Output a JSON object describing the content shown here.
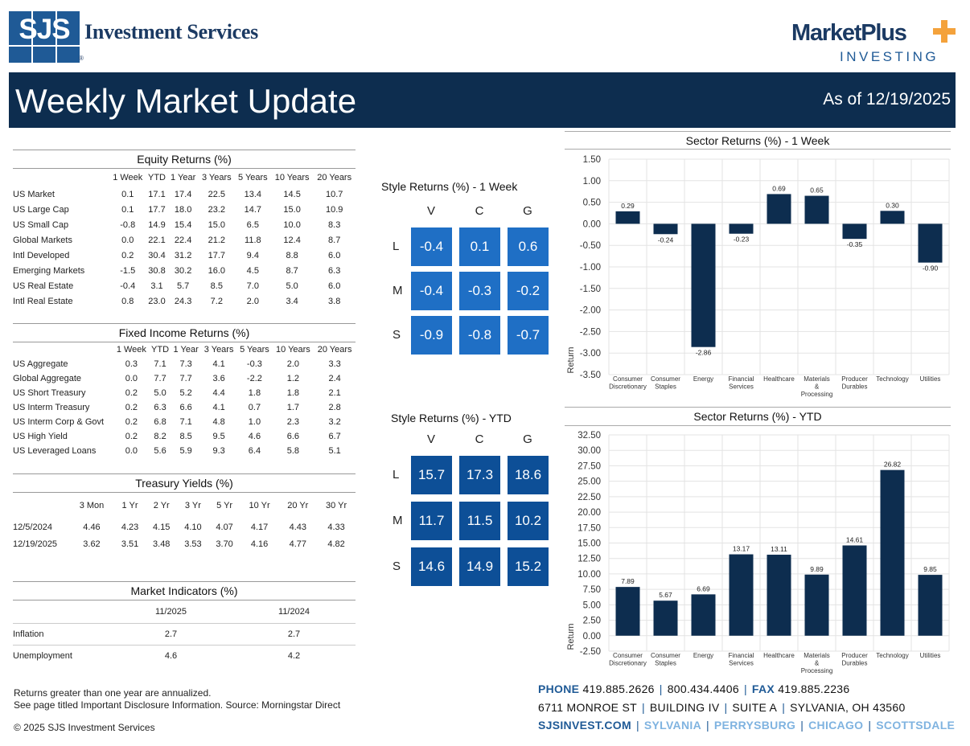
{
  "header": {
    "logo_letters": "SJS",
    "firm_name": "Investment Services",
    "reg_mark": "®",
    "partner_name": "MarketPlus",
    "partner_sub": "INVESTING",
    "title": "Weekly Market Update",
    "as_of": "As of 12/19/2025"
  },
  "equity": {
    "title": "Equity Returns (%)",
    "columns": [
      "1 Week",
      "YTD",
      "1 Year",
      "3 Years",
      "5 Years",
      "10 Years",
      "20 Years"
    ],
    "rows": [
      {
        "label": "US Market",
        "values": [
          "0.1",
          "17.1",
          "17.4",
          "22.5",
          "13.4",
          "14.5",
          "10.7"
        ]
      },
      {
        "label": "US Large Cap",
        "values": [
          "0.1",
          "17.7",
          "18.0",
          "23.2",
          "14.7",
          "15.0",
          "10.9"
        ]
      },
      {
        "label": "US Small Cap",
        "values": [
          "-0.8",
          "14.9",
          "15.4",
          "15.0",
          "6.5",
          "10.0",
          "8.3"
        ]
      },
      {
        "label": "Global Markets",
        "values": [
          "0.0",
          "22.1",
          "22.4",
          "21.2",
          "11.8",
          "12.4",
          "8.7"
        ]
      },
      {
        "label": "Intl Developed",
        "values": [
          "0.2",
          "30.4",
          "31.2",
          "17.7",
          "9.4",
          "8.8",
          "6.0"
        ]
      },
      {
        "label": "Emerging Markets",
        "values": [
          "-1.5",
          "30.8",
          "30.2",
          "16.0",
          "4.5",
          "8.7",
          "6.3"
        ]
      },
      {
        "label": "US Real Estate",
        "values": [
          "-0.4",
          "3.1",
          "5.7",
          "8.5",
          "7.0",
          "5.0",
          "6.0"
        ]
      },
      {
        "label": "Intl Real Estate",
        "values": [
          "0.8",
          "23.0",
          "24.3",
          "7.2",
          "2.0",
          "3.4",
          "3.8"
        ]
      }
    ]
  },
  "fixed": {
    "title": "Fixed Income Returns (%)",
    "columns": [
      "1 Week",
      "YTD",
      "1 Year",
      "3 Years",
      "5 Years",
      "10 Years",
      "20 Years"
    ],
    "rows": [
      {
        "label": "US Aggregate",
        "values": [
          "0.3",
          "7.1",
          "7.3",
          "4.1",
          "-0.3",
          "2.0",
          "3.3"
        ]
      },
      {
        "label": "Global Aggregate",
        "values": [
          "0.0",
          "7.7",
          "7.7",
          "3.6",
          "-2.2",
          "1.2",
          "2.4"
        ]
      },
      {
        "label": "US Short Treasury",
        "values": [
          "0.2",
          "5.0",
          "5.2",
          "4.4",
          "1.8",
          "1.8",
          "2.1"
        ]
      },
      {
        "label": "US Interm Treasury",
        "values": [
          "0.2",
          "6.3",
          "6.6",
          "4.1",
          "0.7",
          "1.7",
          "2.8"
        ]
      },
      {
        "label": "US Interm Corp & Govt",
        "values": [
          "0.2",
          "6.8",
          "7.1",
          "4.8",
          "1.0",
          "2.3",
          "3.2"
        ]
      },
      {
        "label": "US High Yield",
        "values": [
          "0.2",
          "8.2",
          "8.5",
          "9.5",
          "4.6",
          "6.6",
          "6.7"
        ]
      },
      {
        "label": "US Leveraged Loans",
        "values": [
          "0.0",
          "5.6",
          "5.9",
          "9.3",
          "6.4",
          "5.8",
          "5.1"
        ]
      }
    ]
  },
  "treasury": {
    "title": "Treasury Yields (%)",
    "columns": [
      "3 Mon",
      "1 Yr",
      "2 Yr",
      "3 Yr",
      "5 Yr",
      "10 Yr",
      "20 Yr",
      "30 Yr"
    ],
    "rows": [
      {
        "label": "12/5/2024",
        "values": [
          "4.46",
          "4.23",
          "4.15",
          "4.10",
          "4.07",
          "4.17",
          "4.43",
          "4.33"
        ]
      },
      {
        "label": "12/19/2025",
        "values": [
          "3.62",
          "3.51",
          "3.48",
          "3.53",
          "3.70",
          "4.16",
          "4.77",
          "4.82"
        ]
      }
    ]
  },
  "indicators": {
    "title": "Market Indicators (%)",
    "columns": [
      "11/2025",
      "11/2024"
    ],
    "rows": [
      {
        "label": "Inflation",
        "values": [
          "2.7",
          "2.7"
        ]
      },
      {
        "label": "Unemployment",
        "values": [
          "4.6",
          "4.2"
        ]
      }
    ]
  },
  "style_week": {
    "title": "Style Returns (%)  - 1 Week",
    "cols": [
      "V",
      "C",
      "G"
    ],
    "rows": [
      "L",
      "M",
      "S"
    ],
    "values": [
      [
        "-0.4",
        "0.1",
        "0.6"
      ],
      [
        "-0.4",
        "-0.3",
        "-0.2"
      ],
      [
        "-0.9",
        "-0.8",
        "-0.7"
      ]
    ],
    "color": "#1f6fc5"
  },
  "style_ytd": {
    "title": "Style Returns (%)  - YTD",
    "cols": [
      "V",
      "C",
      "G"
    ],
    "rows": [
      "L",
      "M",
      "S"
    ],
    "values": [
      [
        "15.7",
        "17.3",
        "18.6"
      ],
      [
        "11.7",
        "11.5",
        "10.2"
      ],
      [
        "14.6",
        "14.9",
        "15.2"
      ]
    ],
    "color": "#0d4f97"
  },
  "chart_data": [
    {
      "type": "bar",
      "title": "Sector Returns (%)  - 1 Week",
      "ylabel": "Return",
      "ylim": [
        -3.5,
        1.5
      ],
      "yticks": [
        "1.50",
        "1.00",
        "0.50",
        "0.00",
        "-0.50",
        "-1.00",
        "-1.50",
        "-2.00",
        "-2.50",
        "-3.00",
        "-3.50"
      ],
      "categories": [
        "Consumer\nDiscretionary",
        "Consumer\nStaples",
        "Energy",
        "Financial\nServices",
        "Healthcare",
        "Materials\n&\nProcessing",
        "Producer\nDurables",
        "Technology",
        "Utilities"
      ],
      "values": [
        0.29,
        -0.24,
        -2.86,
        -0.23,
        0.69,
        0.65,
        -0.35,
        0.3,
        -0.9
      ],
      "labels": [
        "0.29",
        "-0.24",
        "-2.86",
        "-0.23",
        "0.69",
        "0.65",
        "-0.35",
        "0.30",
        "-0.90"
      ],
      "bar_color": "#0d2d4f",
      "grid": true
    },
    {
      "type": "bar",
      "title": "Sector Returns (%)  - YTD",
      "ylabel": "Return",
      "ylim": [
        -2.5,
        32.5
      ],
      "yticks": [
        "32.50",
        "30.00",
        "27.50",
        "25.00",
        "22.50",
        "20.00",
        "17.50",
        "15.00",
        "12.50",
        "10.00",
        "7.50",
        "5.00",
        "2.50",
        "0.00",
        "-2.50"
      ],
      "categories": [
        "Consumer\nDiscretionary",
        "Consumer\nStaples",
        "Energy",
        "Financial\nServices",
        "Healthcare",
        "Materials\n&\nProcessing",
        "Producer\nDurables",
        "Technology",
        "Utilities"
      ],
      "values": [
        7.89,
        5.67,
        6.69,
        13.17,
        13.11,
        9.89,
        14.61,
        26.82,
        9.85
      ],
      "labels": [
        "7.89",
        "5.67",
        "6.69",
        "13.17",
        "13.11",
        "9.89",
        "14.61",
        "26.82",
        "9.85"
      ],
      "bar_color": "#0d2d4f",
      "grid": true
    }
  ],
  "footer": {
    "note1": "Returns greater than one year are annualized.",
    "note2": "See page titled Important Disclosure Information. Source: Morningstar Direct",
    "copyright": "© 2025 SJS Investment Services",
    "phone_label": "PHONE",
    "phone": "419.885.2626",
    "tollfree": "800.434.4406",
    "fax_label": "FAX",
    "fax": "419.885.2236",
    "address": [
      "6711 MONROE ST",
      "BUILDING IV",
      "SUITE A",
      "SYLVANIA, OH 43560"
    ],
    "website": "SJSINVEST.COM",
    "locations": [
      "SYLVANIA",
      "PERRYSBURG",
      "CHICAGO",
      "SCOTTSDALE"
    ]
  }
}
